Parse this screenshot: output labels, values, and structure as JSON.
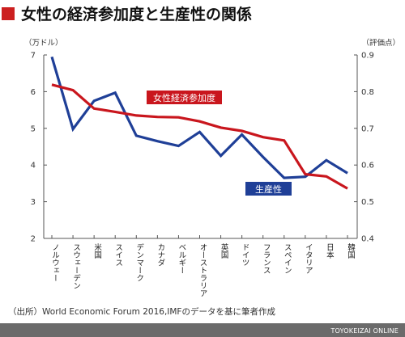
{
  "title": "女性の経済参加度と生産性の関係",
  "source": "（出所）World Economic Forum 2016,IMFのデータを基に筆者作成",
  "footer": "TOYOKEIZAI ONLINE",
  "colors": {
    "accent": "#cc1f1f",
    "productivity": "#1f3f97",
    "participation": "#c9161d",
    "footer_bg": "#6b6b6b"
  },
  "chart_data": {
    "type": "line",
    "categories": [
      "ノルウェー",
      "スウェーデン",
      "米国",
      "スイス",
      "デンマーク",
      "カナダ",
      "ベルギー",
      "オーストラリア",
      "英国",
      "ドイツ",
      "フランス",
      "スペイン",
      "イタリア",
      "日本",
      "韓国"
    ],
    "left_axis": {
      "unit_label": "（万ドル）",
      "ylim": [
        2,
        7
      ],
      "ticks": [
        2,
        3,
        4,
        5,
        6,
        7
      ]
    },
    "right_axis": {
      "unit_label": "（評価点）",
      "ylim": [
        0.4,
        0.9
      ],
      "ticks": [
        "0.4",
        "0.5",
        "0.6",
        "0.7",
        "0.8",
        "0.9"
      ]
    },
    "series": [
      {
        "name": "生産性",
        "axis": "left",
        "values": [
          6.95,
          4.98,
          5.75,
          5.97,
          4.8,
          4.65,
          4.52,
          4.9,
          4.25,
          4.83,
          4.22,
          3.65,
          3.68,
          4.13,
          3.78
        ]
      },
      {
        "name": "女性経済参加度",
        "axis": "right",
        "values": [
          0.819,
          0.804,
          0.754,
          0.745,
          0.735,
          0.731,
          0.73,
          0.719,
          0.702,
          0.693,
          0.676,
          0.667,
          0.575,
          0.569,
          0.536
        ]
      }
    ],
    "grid": false,
    "legend": "inline labels"
  }
}
